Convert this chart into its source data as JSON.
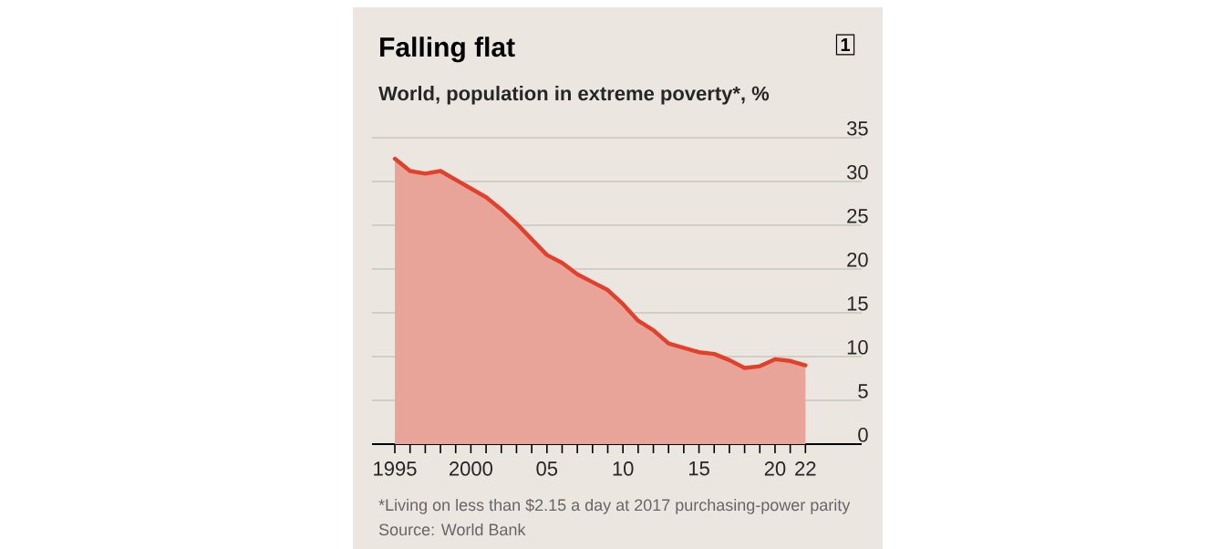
{
  "chart_data": {
    "type": "area",
    "title": "Falling flat",
    "subtitle": "World, population in extreme poverty*, %",
    "annotations": [
      "1",
      "*Living on less than $2.15 a day at 2017 purchasing-power parity",
      "Source: World Bank"
    ],
    "x": [
      1995,
      1996,
      1997,
      1998,
      1999,
      2000,
      2001,
      2002,
      2003,
      2004,
      2005,
      2006,
      2007,
      2008,
      2009,
      2010,
      2011,
      2012,
      2013,
      2014,
      2015,
      2016,
      2017,
      2018,
      2019,
      2020,
      2021,
      2022
    ],
    "series": [
      {
        "color": "#e3402c",
        "values": [
          32.6,
          31.2,
          30.9,
          31.2,
          30.2,
          29.2,
          28.2,
          26.8,
          25.2,
          23.4,
          21.6,
          20.7,
          19.4,
          18.5,
          17.6,
          16.0,
          14.1,
          13.0,
          11.5,
          11.0,
          10.5,
          10.3,
          9.6,
          8.7,
          8.9,
          9.7,
          9.5,
          9.0
        ]
      }
    ],
    "xlim": [
      1993.5,
      2025.7
    ],
    "ylim": [
      0,
      35
    ],
    "xticks": [
      1995,
      {
        "value": 1996,
        "label": null
      },
      {
        "value": 1997,
        "label": null
      },
      {
        "value": 1998,
        "label": null
      },
      {
        "value": 1999,
        "label": null
      },
      2000,
      {
        "value": 2001,
        "label": null
      },
      {
        "value": 2002,
        "label": null
      },
      {
        "value": 2003,
        "label": null
      },
      {
        "value": 2004,
        "label": null
      },
      {
        "value": 2005,
        "label": "05"
      },
      {
        "value": 2006,
        "label": null
      },
      {
        "value": 2007,
        "label": null
      },
      {
        "value": 2008,
        "label": null
      },
      {
        "value": 2009,
        "label": null
      },
      {
        "value": 2010,
        "label": "10"
      },
      {
        "value": 2011,
        "label": null
      },
      {
        "value": 2012,
        "label": null
      },
      {
        "value": 2013,
        "label": null
      },
      {
        "value": 2014,
        "label": null
      },
      {
        "value": 2015,
        "label": "15"
      },
      {
        "value": 2016,
        "label": null
      },
      {
        "value": 2017,
        "label": null
      },
      {
        "value": 2018,
        "label": null
      },
      {
        "value": 2019,
        "label": null
      },
      {
        "value": 2020,
        "label": "20"
      },
      {
        "value": 2021,
        "label": null
      },
      {
        "value": 2022,
        "label": "22"
      }
    ],
    "yticks": [
      0,
      5,
      10,
      15,
      20,
      25,
      30,
      35
    ],
    "grid": "y"
  }
}
